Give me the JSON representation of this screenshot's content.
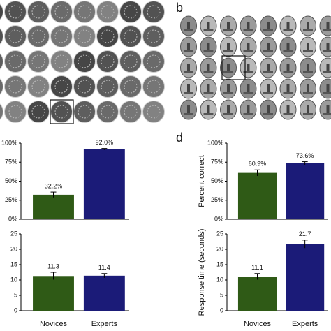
{
  "panel_labels": [
    "b",
    "d"
  ],
  "chart_data": [
    {
      "type": "bar",
      "values": [
        32.2,
        92.0
      ],
      "value_labels": [
        "32.2%",
        "92.0%"
      ],
      "errors": [
        3.5,
        1.0
      ],
      "colors": [
        "#2f5a16",
        "#1b1b78"
      ],
      "ylim": [
        0,
        100
      ],
      "yticks": [
        {
          "value": 0,
          "label": "0%"
        },
        {
          "value": 25,
          "label": "25%"
        },
        {
          "value": 50,
          "label": "50%"
        },
        {
          "value": 75,
          "label": "75%"
        },
        {
          "value": 100,
          "label": "100%"
        }
      ]
    },
    {
      "type": "bar",
      "categories": [
        "Novices",
        "Experts"
      ],
      "values": [
        11.3,
        11.4
      ],
      "errors": [
        1.2,
        0.7
      ],
      "colors": [
        "#2f5a16",
        "#1b1b78"
      ],
      "ylim": [
        0,
        25
      ],
      "yticks": [
        0,
        5,
        10,
        15,
        20,
        25
      ]
    },
    {
      "type": "bar",
      "ylabel": "Percent correct",
      "values": [
        60.9,
        73.6
      ],
      "value_labels": [
        "60.9%",
        "73.6%"
      ],
      "errors": [
        4.0,
        2.0
      ],
      "colors": [
        "#2f5a16",
        "#1b1b78"
      ],
      "ylim": [
        0,
        100
      ],
      "yticks": [
        {
          "value": 0,
          "label": "0%"
        },
        {
          "value": 25,
          "label": "25%"
        },
        {
          "value": 50,
          "label": "50%"
        },
        {
          "value": 75,
          "label": "75%"
        },
        {
          "value": 100,
          "label": "100%"
        }
      ]
    },
    {
      "type": "bar",
      "ylabel": "Response time (seconds)",
      "categories": [
        "Novices",
        "Experts"
      ],
      "values": [
        11.1,
        21.7
      ],
      "errors": [
        1.0,
        1.3
      ],
      "colors": [
        "#2f5a16",
        "#1b1b78"
      ],
      "ylim": [
        0,
        25
      ],
      "yticks": [
        0,
        5,
        10,
        15,
        20,
        25
      ]
    }
  ]
}
